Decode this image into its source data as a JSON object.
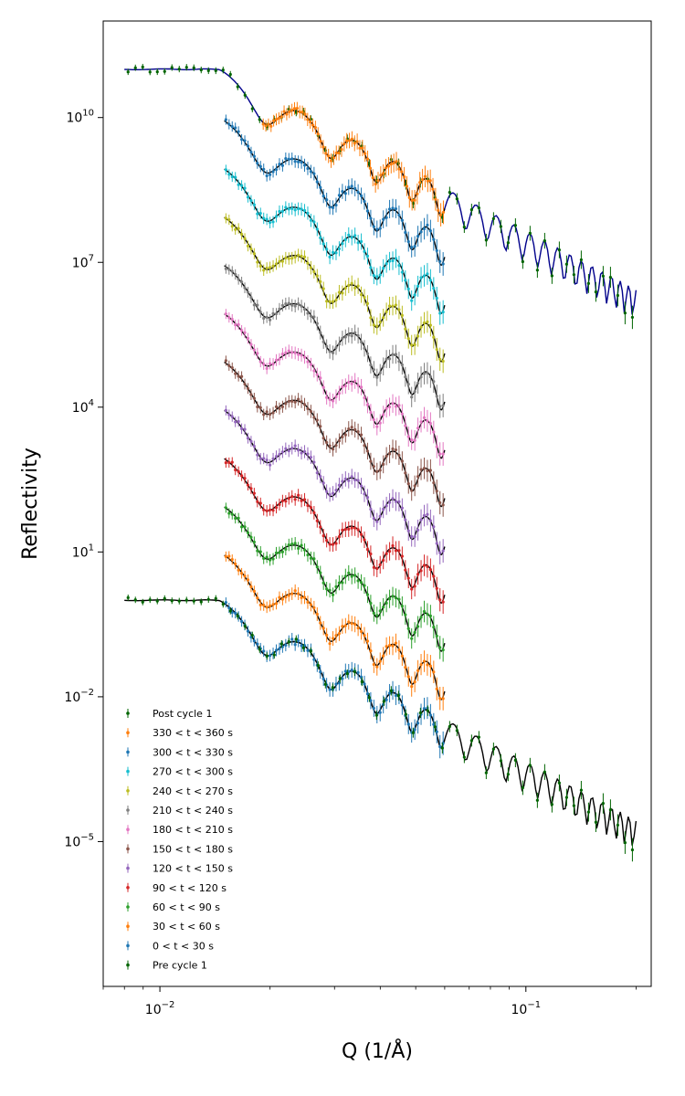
{
  "chart_data": {
    "type": "scatter",
    "title": "",
    "xlabel": "Q (1/Å)",
    "ylabel": "Reflectivity",
    "x_scale": "log",
    "y_scale": "log",
    "xlim": [
      0.007,
      0.22
    ],
    "ylim": [
      1e-08,
      1000000000000.0
    ],
    "x_ticks": [
      {
        "value": 0.01,
        "mant": "10",
        "exp": "−2"
      },
      {
        "value": 0.1,
        "mant": "10",
        "exp": "−1"
      }
    ],
    "y_ticks": [
      {
        "value": 10000000000.0,
        "mant": "10",
        "exp": "10"
      },
      {
        "value": 10000000.0,
        "mant": "10",
        "exp": "7"
      },
      {
        "value": 10000.0,
        "mant": "10",
        "exp": "4"
      },
      {
        "value": 10.0,
        "mant": "10",
        "exp": "1"
      },
      {
        "value": 0.01,
        "mant": "10",
        "exp": "−2"
      },
      {
        "value": 1e-05,
        "mant": "10",
        "exp": "−5"
      }
    ],
    "grid": false,
    "legend_position": "bottom-left",
    "colors": {
      "pre": "#006400",
      "post": "#006400",
      "fit": "#000000",
      "post_fit": "#00008b"
    },
    "series": [
      {
        "name": "Post cycle 1",
        "color": "#006400",
        "offset": 100000000000.0,
        "qmin": 0.008,
        "qmax": 0.2,
        "fit_color": "#00008b"
      },
      {
        "name": "330 < t < 360 s",
        "color": "#ff7f0e",
        "offset": 100000000000.0,
        "qmin": 0.019,
        "qmax": 0.06,
        "fit_color": "#000000"
      },
      {
        "name": "300 < t < 330 s",
        "color": "#1f77b4",
        "offset": 10000000000.0,
        "qmin": 0.015,
        "qmax": 0.06,
        "fit_color": "#000000"
      },
      {
        "name": "270 < t < 300 s",
        "color": "#17becf",
        "offset": 1000000000.0,
        "qmin": 0.015,
        "qmax": 0.06,
        "fit_color": "#000000"
      },
      {
        "name": "240 < t < 270 s",
        "color": "#bcbd22",
        "offset": 100000000.0,
        "qmin": 0.015,
        "qmax": 0.06,
        "fit_color": "#000000"
      },
      {
        "name": "210 < t < 240 s",
        "color": "#7f7f7f",
        "offset": 10000000.0,
        "qmin": 0.015,
        "qmax": 0.06,
        "fit_color": "#000000"
      },
      {
        "name": "180 < t < 210 s",
        "color": "#e377c2",
        "offset": 1000000.0,
        "qmin": 0.015,
        "qmax": 0.06,
        "fit_color": "#000000"
      },
      {
        "name": "150 < t < 180 s",
        "color": "#8c564b",
        "offset": 100000.0,
        "qmin": 0.015,
        "qmax": 0.06,
        "fit_color": "#000000"
      },
      {
        "name": "120 < t < 150 s",
        "color": "#9467bd",
        "offset": 10000.0,
        "qmin": 0.015,
        "qmax": 0.06,
        "fit_color": "#000000"
      },
      {
        "name": "90 < t < 120 s",
        "color": "#d62728",
        "offset": 1000.0,
        "qmin": 0.015,
        "qmax": 0.06,
        "fit_color": "#000000"
      },
      {
        "name": "60 < t < 90 s",
        "color": "#2ca02c",
        "offset": 100.0,
        "qmin": 0.015,
        "qmax": 0.06,
        "fit_color": "#000000"
      },
      {
        "name": "30 < t < 60 s",
        "color": "#ff7f0e",
        "offset": 10.0,
        "qmin": 0.015,
        "qmax": 0.06,
        "fit_color": "#000000"
      },
      {
        "name": "0 < t < 30 s",
        "color": "#1f77b4",
        "offset": 1,
        "qmin": 0.015,
        "qmax": 0.06,
        "fit_color": "#000000"
      },
      {
        "name": "Pre cycle 1",
        "color": "#006400",
        "offset": 1,
        "qmin": 0.008,
        "qmax": 0.2,
        "fit_color": "#000000"
      }
    ]
  }
}
